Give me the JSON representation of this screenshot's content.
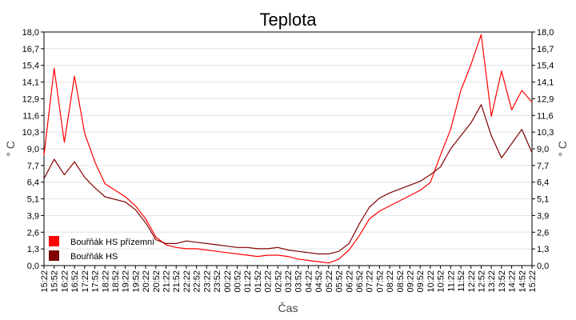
{
  "chart_data": {
    "type": "line",
    "title": "Teplota",
    "xlabel": "Čas",
    "ylabel": "° C",
    "ylim": [
      0,
      18
    ],
    "y_ticks": [
      "0,0",
      "1,3",
      "2,6",
      "3,9",
      "5,1",
      "6,4",
      "7,7",
      "9,0",
      "10,3",
      "11,6",
      "12,9",
      "14,1",
      "15,4",
      "16,7",
      "18,0"
    ],
    "x_ticks": [
      "15:22",
      "15:52",
      "16:22",
      "16:52",
      "17:22",
      "17:52",
      "18:22",
      "18:52",
      "19:22",
      "19:52",
      "20:22",
      "20:52",
      "21:22",
      "21:52",
      "22:22",
      "22:52",
      "23:22",
      "23:52",
      "00:22",
      "00:52",
      "01:22",
      "01:52",
      "02:22",
      "02:52",
      "03:22",
      "03:52",
      "04:22",
      "04:52",
      "05:22",
      "05:52",
      "06:22",
      "06:52",
      "07:22",
      "07:52",
      "08:22",
      "08:52",
      "09:22",
      "09:52",
      "10:22",
      "10:52",
      "11:22",
      "11:52",
      "12:22",
      "12:52",
      "13:22",
      "13:52",
      "14:22",
      "14:52",
      "15:22"
    ],
    "grid": true,
    "legend_position": "bottom-left",
    "series": [
      {
        "name": "Bouřňák HS přízemní",
        "color": "#ff0000",
        "x": [
          "15:22",
          "15:52",
          "16:22",
          "16:52",
          "17:22",
          "17:52",
          "18:22",
          "18:52",
          "19:22",
          "19:52",
          "20:22",
          "20:52",
          "21:22",
          "21:52",
          "22:22",
          "22:52",
          "23:22",
          "23:52",
          "00:22",
          "00:52",
          "01:22",
          "01:52",
          "02:22",
          "02:52",
          "03:22",
          "03:52",
          "04:22",
          "04:52",
          "05:22",
          "05:52",
          "06:22",
          "06:52",
          "07:22",
          "07:52",
          "08:22",
          "08:52",
          "09:22",
          "09:52",
          "10:22",
          "10:52",
          "11:22",
          "11:52",
          "12:22",
          "12:52",
          "13:22",
          "13:52",
          "14:22",
          "14:52",
          "15:22"
        ],
        "values": [
          8.5,
          15.2,
          9.5,
          14.6,
          10.2,
          8.0,
          6.3,
          5.8,
          5.3,
          4.6,
          3.6,
          2.2,
          1.6,
          1.4,
          1.3,
          1.3,
          1.2,
          1.1,
          1.0,
          0.9,
          0.8,
          0.7,
          0.8,
          0.8,
          0.7,
          0.5,
          0.4,
          0.3,
          0.2,
          0.5,
          1.2,
          2.3,
          3.6,
          4.2,
          4.6,
          5.0,
          5.4,
          5.8,
          6.4,
          8.5,
          10.5,
          13.5,
          15.5,
          17.8,
          11.5,
          15.0,
          12.0,
          13.5,
          12.6
        ]
      },
      {
        "name": "Bouřňák HS",
        "color": "#800000",
        "x": [
          "15:22",
          "15:52",
          "16:22",
          "16:52",
          "17:22",
          "17:52",
          "18:22",
          "18:52",
          "19:22",
          "19:52",
          "20:22",
          "20:52",
          "21:22",
          "21:52",
          "22:22",
          "22:52",
          "23:22",
          "23:52",
          "00:22",
          "00:52",
          "01:22",
          "01:52",
          "02:22",
          "02:52",
          "03:22",
          "03:52",
          "04:22",
          "04:52",
          "05:22",
          "05:52",
          "06:22",
          "06:52",
          "07:22",
          "07:52",
          "08:22",
          "08:52",
          "09:22",
          "09:52",
          "10:22",
          "10:52",
          "11:22",
          "11:52",
          "12:22",
          "12:52",
          "13:22",
          "13:52",
          "14:22",
          "14:52",
          "15:22"
        ],
        "values": [
          6.7,
          8.2,
          7.0,
          8.0,
          6.8,
          6.0,
          5.3,
          5.1,
          4.9,
          4.3,
          3.3,
          2.0,
          1.7,
          1.7,
          1.9,
          1.8,
          1.7,
          1.6,
          1.5,
          1.4,
          1.4,
          1.3,
          1.3,
          1.4,
          1.2,
          1.1,
          1.0,
          0.9,
          0.9,
          1.1,
          1.7,
          3.2,
          4.5,
          5.2,
          5.6,
          5.9,
          6.2,
          6.5,
          7.0,
          7.6,
          9.0,
          10.0,
          11.0,
          12.4,
          10.0,
          8.3,
          9.4,
          10.5,
          8.7
        ]
      }
    ]
  }
}
